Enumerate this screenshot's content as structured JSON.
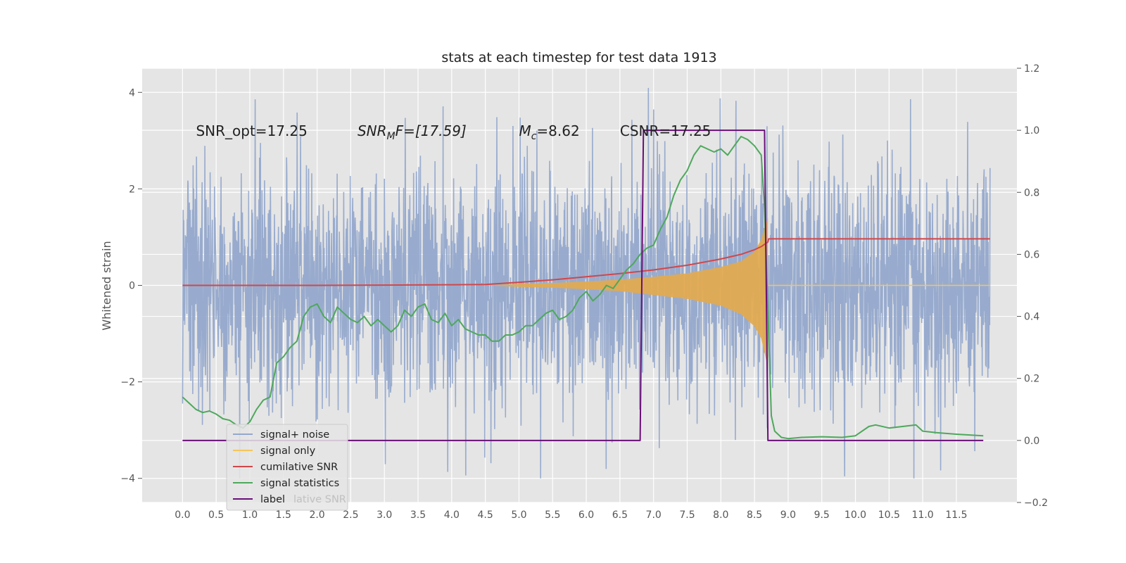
{
  "chart_data": {
    "type": "line",
    "title": "stats at each timestep for test data 1913",
    "ylabel": "Whitened strain",
    "y2label": "",
    "xlim": [
      -0.6,
      12.4
    ],
    "ylim": [
      -4.5,
      4.5
    ],
    "y2lim": [
      -0.2,
      1.2
    ],
    "grid": true,
    "x_ticks": [
      "0.0",
      "0.5",
      "1.0",
      "1.5",
      "2.0",
      "2.5",
      "3.0",
      "3.5",
      "4.0",
      "4.5",
      "5.0",
      "5.5",
      "6.0",
      "6.5",
      "7.0",
      "7.5",
      "8.0",
      "8.5",
      "9.0",
      "9.5",
      "10.0",
      "10.5",
      "11.0",
      "11.5"
    ],
    "y_ticks": [
      "4",
      "2",
      "0",
      "−2",
      "−4"
    ],
    "y2_ticks": [
      "1.2",
      "1.0",
      "0.8",
      "0.6",
      "0.4",
      "0.2",
      "0.0",
      "−0.2"
    ],
    "annotations": [
      {
        "text": "SNR_opt=17.25"
      },
      {
        "text_pre": "SNR",
        "text_sub": "M",
        "text_post": "F=[17.59]",
        "italic": true
      },
      {
        "text_pre": "M",
        "text_sub": "c",
        "text_post": "=8.62"
      },
      {
        "text": "CSNR=17.25"
      }
    ],
    "annotation_x": [
      0.2,
      2.6,
      5.0,
      6.5
    ],
    "annotation_y": 3.2,
    "legend_position": "lower-left",
    "legend": [
      {
        "label": "signal+ noise",
        "color": "#94a8cc"
      },
      {
        "label": "signal only",
        "color": "#f5c65a"
      },
      {
        "label": "cumilative SNR",
        "color": "#d0474a"
      },
      {
        "label": "signal statistics",
        "color": "#4ea85c"
      },
      {
        "label": "label",
        "color": "#6a0f78"
      }
    ],
    "legend_ghost_text": "lative SNR",
    "series": [
      {
        "name": "signal+ noise",
        "axis": "left",
        "kind": "noise",
        "x_range": [
          0.0,
          12.0
        ],
        "amplitude_envelope": [
          2.5,
          -2.5
        ],
        "color": "#94a8cc"
      },
      {
        "name": "signal only",
        "axis": "left",
        "kind": "chirp_fill",
        "x": [
          4.5,
          5.0,
          5.5,
          6.0,
          6.5,
          7.0,
          7.5,
          8.0,
          8.3,
          8.5,
          8.6,
          8.65,
          8.7
        ],
        "upper": [
          0.0,
          0.03,
          0.05,
          0.08,
          0.12,
          0.18,
          0.25,
          0.38,
          0.5,
          0.7,
          0.95,
          1.2,
          1.4
        ],
        "lower": [
          0.0,
          -0.03,
          -0.05,
          -0.08,
          -0.12,
          -0.2,
          -0.28,
          -0.42,
          -0.6,
          -0.85,
          -1.1,
          -1.4,
          -1.7
        ],
        "tail_x": [
          8.7,
          12.0
        ],
        "tail_y": 0.0,
        "color": "#f5c65a",
        "fill": "#e3a94e"
      },
      {
        "name": "cumilative SNR",
        "axis": "right",
        "x": [
          0.0,
          1.0,
          2.0,
          3.0,
          4.0,
          4.5,
          5.0,
          5.5,
          6.0,
          6.5,
          7.0,
          7.5,
          8.0,
          8.3,
          8.5,
          8.6,
          8.7,
          8.71,
          12.0
        ],
        "y": [
          0.5,
          0.5,
          0.5,
          0.501,
          0.502,
          0.503,
          0.51,
          0.518,
          0.528,
          0.538,
          0.55,
          0.565,
          0.585,
          0.6,
          0.615,
          0.625,
          0.64,
          0.65,
          0.65
        ],
        "color": "#d0474a"
      },
      {
        "name": "signal statistics",
        "axis": "right",
        "x": [
          0.0,
          0.1,
          0.2,
          0.3,
          0.4,
          0.5,
          0.6,
          0.7,
          0.8,
          0.9,
          1.0,
          1.1,
          1.2,
          1.3,
          1.4,
          1.5,
          1.6,
          1.7,
          1.8,
          1.9,
          2.0,
          2.1,
          2.2,
          2.3,
          2.4,
          2.5,
          2.6,
          2.7,
          2.8,
          2.9,
          3.0,
          3.1,
          3.2,
          3.3,
          3.4,
          3.5,
          3.6,
          3.7,
          3.8,
          3.9,
          4.0,
          4.1,
          4.2,
          4.3,
          4.4,
          4.5,
          4.6,
          4.7,
          4.8,
          4.9,
          5.0,
          5.1,
          5.2,
          5.3,
          5.4,
          5.5,
          5.6,
          5.7,
          5.8,
          5.9,
          6.0,
          6.1,
          6.2,
          6.3,
          6.4,
          6.5,
          6.6,
          6.7,
          6.8,
          6.9,
          7.0,
          7.1,
          7.2,
          7.3,
          7.4,
          7.5,
          7.6,
          7.7,
          7.8,
          7.9,
          8.0,
          8.1,
          8.2,
          8.3,
          8.4,
          8.5,
          8.6,
          8.65,
          8.7,
          8.75,
          8.8,
          8.9,
          9.0,
          9.2,
          9.5,
          9.8,
          10.0,
          10.2,
          10.3,
          10.5,
          10.7,
          10.9,
          11.0,
          11.2,
          11.5,
          11.9
        ],
        "y": [
          0.14,
          0.12,
          0.1,
          0.09,
          0.095,
          0.085,
          0.07,
          0.065,
          0.05,
          0.04,
          0.06,
          0.1,
          0.13,
          0.14,
          0.25,
          0.27,
          0.3,
          0.32,
          0.4,
          0.43,
          0.44,
          0.4,
          0.38,
          0.43,
          0.41,
          0.39,
          0.38,
          0.4,
          0.37,
          0.39,
          0.37,
          0.35,
          0.37,
          0.42,
          0.4,
          0.43,
          0.44,
          0.39,
          0.38,
          0.41,
          0.37,
          0.39,
          0.36,
          0.35,
          0.34,
          0.34,
          0.32,
          0.32,
          0.34,
          0.34,
          0.35,
          0.37,
          0.37,
          0.39,
          0.41,
          0.42,
          0.39,
          0.4,
          0.42,
          0.46,
          0.48,
          0.45,
          0.47,
          0.5,
          0.49,
          0.52,
          0.55,
          0.57,
          0.6,
          0.62,
          0.63,
          0.68,
          0.72,
          0.79,
          0.84,
          0.87,
          0.92,
          0.95,
          0.94,
          0.93,
          0.94,
          0.92,
          0.95,
          0.98,
          0.97,
          0.95,
          0.92,
          0.75,
          0.42,
          0.08,
          0.03,
          0.01,
          0.006,
          0.01,
          0.012,
          0.01,
          0.015,
          0.045,
          0.05,
          0.04,
          0.045,
          0.05,
          0.03,
          0.025,
          0.02,
          0.015
        ],
        "color": "#4ea85c"
      },
      {
        "name": "label",
        "axis": "right",
        "x": [
          0.0,
          6.8,
          6.85,
          8.65,
          8.7,
          11.9
        ],
        "y": [
          0.0,
          0.0,
          1.0,
          1.0,
          0.0,
          0.0
        ],
        "color": "#6a0f78"
      }
    ]
  }
}
